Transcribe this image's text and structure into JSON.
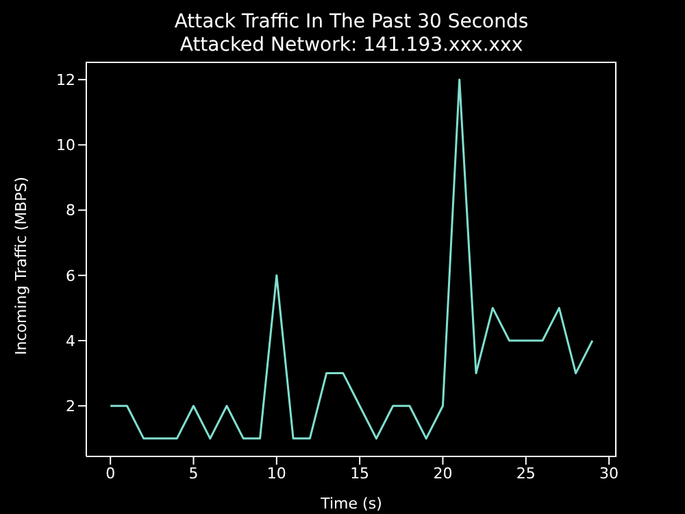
{
  "chart_data": {
    "type": "line",
    "title": "Attack Traffic In The Past 30 Seconds",
    "subtitle": "Attacked Network: 141.193.xxx.xxx",
    "xlabel": "Time (s)",
    "ylabel": "Incoming Traffic (MBPS)",
    "x": [
      0,
      1,
      2,
      3,
      4,
      5,
      6,
      7,
      8,
      9,
      10,
      11,
      12,
      13,
      14,
      15,
      16,
      17,
      18,
      19,
      20,
      21,
      22,
      23,
      24,
      25,
      26,
      27,
      28,
      29
    ],
    "series": [
      {
        "color": "#7fdfcf",
        "values": [
          2,
          2,
          1,
          1,
          1,
          2,
          1,
          2,
          1,
          1,
          6,
          1,
          1,
          3,
          3,
          2,
          1,
          2,
          2,
          1,
          2,
          12,
          3,
          5,
          4,
          4,
          4,
          5,
          3,
          4
        ]
      }
    ],
    "xlim": [
      -1.45,
      30.45
    ],
    "xticks": [
      0,
      5,
      10,
      15,
      20,
      25,
      30
    ],
    "ylim": [
      0.45,
      12.55
    ],
    "yticks": [
      2,
      4,
      6,
      8,
      10,
      12
    ],
    "marker": "none",
    "line_style": "solid"
  }
}
